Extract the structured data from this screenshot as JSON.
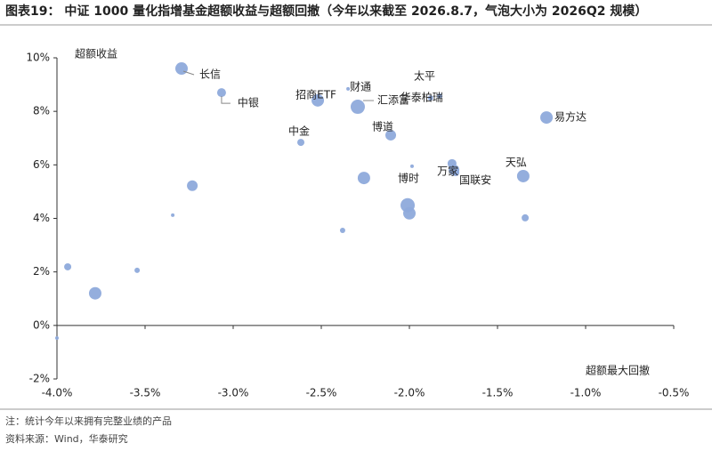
{
  "chart_data": {
    "type": "bubble",
    "title": "图表19：  中证 1000 量化指增基金超额收益与超额回撤（今年以来截至 2026.8.7，气泡大小为 2026Q2 规模）",
    "y_label": "超额收益",
    "x_label": "超额最大回撤",
    "notes": [
      "注：统计今年以来拥有完整业绩的产品",
      "资料来源：Wind，华泰研究"
    ],
    "color": "#8eaadb",
    "xlim": [
      -4.0,
      -0.5
    ],
    "ylim": [
      -2,
      10
    ],
    "xticks": [
      {
        "value": -4.0,
        "label": "-4.0%"
      },
      {
        "value": -3.5,
        "label": "-3.5%"
      },
      {
        "value": -3.0,
        "label": "-3.0%"
      },
      {
        "value": -2.5,
        "label": "-2.5%"
      },
      {
        "value": -2.0,
        "label": "-2.0%"
      },
      {
        "value": -1.5,
        "label": "-1.5%"
      },
      {
        "value": -1.0,
        "label": "-1.0%"
      },
      {
        "value": -0.5,
        "label": "-0.5%"
      }
    ],
    "yticks": [
      {
        "value": -2,
        "label": "-2%"
      },
      {
        "value": 0,
        "label": "0%"
      },
      {
        "value": 2,
        "label": "2%"
      },
      {
        "value": 4,
        "label": "4%"
      },
      {
        "value": 6,
        "label": "6%"
      },
      {
        "value": 8,
        "label": "8%"
      },
      {
        "value": 10,
        "label": "10%"
      }
    ],
    "x": [
      -3.293,
      -3.066,
      -2.52,
      -2.348,
      -2.293,
      -1.828,
      -1.88,
      -1.222,
      -2.106,
      -2.616,
      -1.354,
      -1.985,
      -1.758,
      -1.747,
      -1.737,
      -2.258,
      -3.232,
      -2.01,
      -2.0,
      -1.343,
      -3.343,
      -2.379,
      -3.939,
      -3.545,
      -3.783,
      -4.0
    ],
    "values": [
      9.6,
      8.7,
      8.41,
      8.84,
      8.17,
      8.57,
      8.5,
      7.77,
      7.11,
      6.84,
      5.58,
      5.95,
      6.05,
      5.81,
      5.71,
      5.51,
      5.22,
      4.49,
      4.19,
      4.02,
      4.12,
      3.55,
      2.19,
      2.06,
      1.2,
      -0.47
    ],
    "sizes": [
      49,
      25,
      49,
      4,
      64,
      9,
      9,
      49,
      36,
      16,
      49,
      4,
      25,
      36,
      16,
      49,
      36,
      64,
      49,
      16,
      4,
      9,
      16,
      9,
      49,
      4
    ],
    "labels": [
      "长信",
      "中银",
      "招商ETF",
      "财通",
      "汇添富",
      "太平",
      "华泰柏瑞",
      "易方达",
      "博道",
      "中金",
      "天弘",
      "博时",
      null,
      "万家",
      "国联安",
      null,
      null,
      null,
      null,
      null,
      null,
      null,
      null,
      null,
      null,
      null
    ]
  }
}
